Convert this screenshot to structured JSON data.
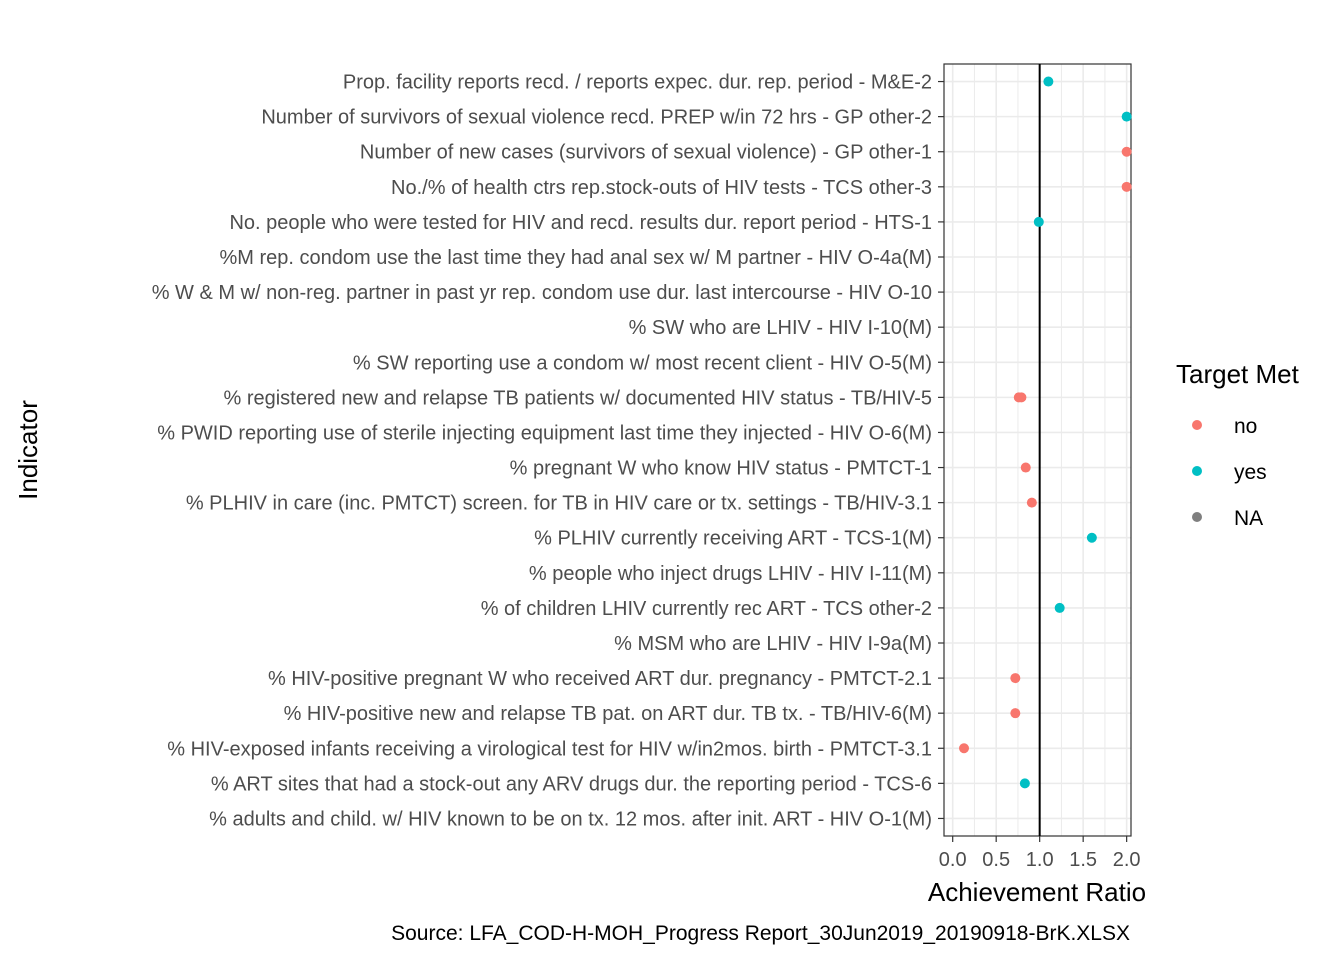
{
  "chart_data": {
    "type": "scatter",
    "xlabel": "Achievement Ratio",
    "ylabel": "Indicator",
    "caption": "Source: LFA_COD-H-MOH_Progress Report_30Jun2019_20190918-BrK.XLSX",
    "xlim": [
      -0.1,
      2.05
    ],
    "x_ticks": [
      "0.0",
      "0.5",
      "1.0",
      "1.5",
      "2.0"
    ],
    "x_tick_values": [
      0,
      0.5,
      1.0,
      1.5,
      2.0
    ],
    "reference_line_x": 1.0,
    "grid": true,
    "legend": {
      "title": "Target Met",
      "position": "right",
      "entries": [
        {
          "label": "no",
          "color": "#F8766D"
        },
        {
          "label": "yes",
          "color": "#00BFC4"
        },
        {
          "label": "NA",
          "color": "#7F7F7F"
        }
      ]
    },
    "categories": [
      "Prop. facility reports recd. / reports expec. dur. rep. period - M&E-2",
      "Number of survivors of sexual violence recd. PREP w/in 72 hrs - GP other-2",
      "Number of new cases (survivors of sexual violence) - GP other-1",
      "No./% of health ctrs rep.stock-outs of HIV tests - TCS other-3",
      "No. people who were tested for HIV and recd. results dur. report period - HTS-1",
      "%M rep. condom use the last time they had anal sex w/ M partner - HIV O-4a(M)",
      "% W & M w/ non-reg. partner in past yr rep. condom use dur. last intercourse - HIV O-10",
      "% SW who are LHIV - HIV I-10(M)",
      "% SW reporting use a condom w/ most recent client - HIV O-5(M)",
      "% registered new and relapse TB patients w/ documented HIV status - TB/HIV-5",
      "% PWID reporting use of sterile injecting equipment last time they injected - HIV O-6(M)",
      "% pregnant W who know HIV status - PMTCT-1",
      "% PLHIV in care (inc. PMTCT) screen. for TB in HIV care or tx. settings - TB/HIV-3.1",
      "% PLHIV currently receiving ART - TCS-1(M)",
      "% people who inject drugs LHIV - HIV I-11(M)",
      "% of children LHIV currently rec ART - TCS other-2",
      "% MSM who are LHIV - HIV I-9a(M)",
      "% HIV-positive pregnant W who received ART dur. pregnancy - PMTCT-2.1",
      "% HIV-positive new and relapse TB pat. on ART dur. TB tx. - TB/HIV-6(M)",
      "% HIV-exposed infants receiving a virological test for HIV w/in2mos. birth - PMTCT-3.1",
      "% ART sites that had a stock-out any ARV drugs dur. the reporting period - TCS-6",
      "% adults and child. w/ HIV known to be on tx. 12 mos. after init. ART - HIV O-1(M)"
    ],
    "series": [
      {
        "name": "no",
        "color": "#F8766D",
        "points": [
          {
            "y": "Number of new cases (survivors of sexual violence) - GP other-1",
            "x": 2.0
          },
          {
            "y": "No./% of health ctrs rep.stock-outs of HIV tests - TCS other-3",
            "x": 2.0
          },
          {
            "y": "% registered new and relapse TB patients w/ documented HIV status - TB/HIV-5",
            "x": 0.76
          },
          {
            "y": "% registered new and relapse TB patients w/ documented HIV status - TB/HIV-5",
            "x": 0.79
          },
          {
            "y": "% pregnant W who know HIV status - PMTCT-1",
            "x": 0.84
          },
          {
            "y": "% PLHIV in care (inc. PMTCT) screen. for TB in HIV care or tx. settings - TB/HIV-3.1",
            "x": 0.91
          },
          {
            "y": "% HIV-positive pregnant W who received ART dur. pregnancy - PMTCT-2.1",
            "x": 0.72
          },
          {
            "y": "% HIV-positive new and relapse TB pat. on ART dur. TB tx. - TB/HIV-6(M)",
            "x": 0.72
          },
          {
            "y": "% HIV-exposed infants receiving a virological test for HIV w/in2mos. birth - PMTCT-3.1",
            "x": 0.13
          }
        ]
      },
      {
        "name": "yes",
        "color": "#00BFC4",
        "points": [
          {
            "y": "Prop. facility reports recd. / reports expec. dur. rep. period - M&E-2",
            "x": 1.1
          },
          {
            "y": "Number of survivors of sexual violence recd. PREP w/in 72 hrs - GP other-2",
            "x": 2.0
          },
          {
            "y": "No. people who were tested for HIV and recd. results dur. report period - HTS-1",
            "x": 0.99
          },
          {
            "y": "% PLHIV currently receiving ART - TCS-1(M)",
            "x": 1.6
          },
          {
            "y": "% of children LHIV currently rec ART - TCS other-2",
            "x": 1.23
          },
          {
            "y": "% ART sites that had a stock-out any ARV drugs dur. the reporting period - TCS-6",
            "x": 0.83
          }
        ]
      }
    ]
  }
}
